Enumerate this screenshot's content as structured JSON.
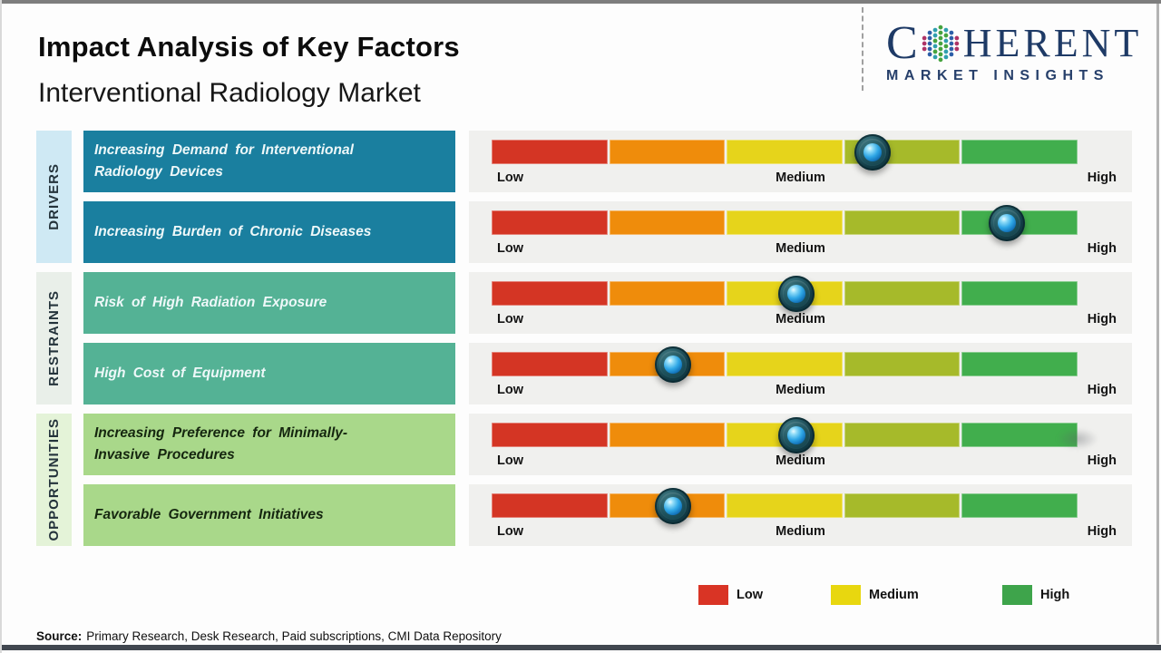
{
  "header": {
    "title": "Impact Analysis of Key Factors",
    "subtitle": "Interventional Radiology Market"
  },
  "logo": {
    "brand_c": "C",
    "brand_rest": "HERENT",
    "tagline": "MARKET INSIGHTS",
    "brand_color": "#1e3a66"
  },
  "chart_data": {
    "type": "impact-dot-scale",
    "title": "Impact Analysis of Key Factors",
    "scale": {
      "labels": [
        "Low",
        "Medium",
        "High"
      ],
      "range_pct": [
        0,
        100
      ],
      "segment_colors": [
        "#d43524",
        "#ef8c0b",
        "#e6d41b",
        "#a6ba2a",
        "#41ae4d"
      ]
    },
    "groups": [
      {
        "label": "DRIVERS",
        "color": "#1a7f9f",
        "sidebar_color": "#cfe9f4"
      },
      {
        "label": "RESTRAINTS",
        "color": "#54b295",
        "sidebar_color": "#e9efe9"
      },
      {
        "label": "OPPORTUNITIES",
        "color": "#a9d88a",
        "sidebar_color": "#e4f3d8"
      }
    ],
    "rows": [
      {
        "group": "DRIVERS",
        "factor": "Increasing Demand for Interventional Radiology Devices",
        "impact_level": "Medium-High",
        "impact_pct": 65
      },
      {
        "group": "DRIVERS",
        "factor": "Increasing Burden of Chronic Diseases",
        "impact_level": "High",
        "impact_pct": 88
      },
      {
        "group": "RESTRAINTS",
        "factor": "Risk of High Radiation Exposure",
        "impact_level": "Medium",
        "impact_pct": 52
      },
      {
        "group": "RESTRAINTS",
        "factor": "High Cost of Equipment",
        "impact_level": "Low-Medium",
        "impact_pct": 31
      },
      {
        "group": "OPPORTUNITIES",
        "factor": "Increasing Preference for Minimally-Invasive Procedures",
        "impact_level": "Medium",
        "impact_pct": 52
      },
      {
        "group": "OPPORTUNITIES",
        "factor": "Favorable Government Initiatives",
        "impact_level": "Low-Medium",
        "impact_pct": 31
      }
    ]
  },
  "legend": {
    "items": [
      {
        "label": "Low",
        "color": "#d93425"
      },
      {
        "label": "Medium",
        "color": "#e8d70f"
      },
      {
        "label": "High",
        "color": "#3ea44b"
      }
    ]
  },
  "source": {
    "label": "Source:",
    "text": "Primary Research, Desk Research, Paid subscriptions, CMI Data Repository"
  }
}
